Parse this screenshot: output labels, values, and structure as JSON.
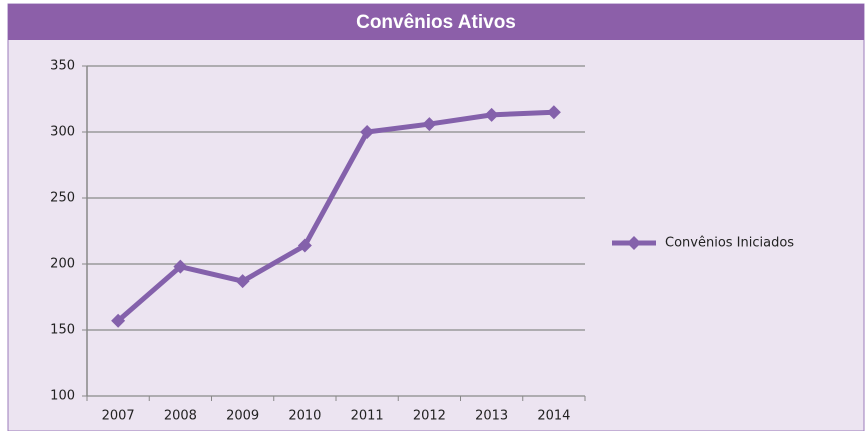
{
  "chart_data": {
    "type": "line",
    "title": "Convênios Ativos",
    "categories": [
      "2007",
      "2008",
      "2009",
      "2010",
      "2011",
      "2012",
      "2013",
      "2014"
    ],
    "series": [
      {
        "name": "Convênios Iniciados",
        "color": "#8461ab",
        "values": [
          157,
          198,
          187,
          214,
          300,
          306,
          313,
          315
        ]
      }
    ],
    "ylim": [
      100,
      350
    ],
    "yticks": [
      100,
      150,
      200,
      250,
      300,
      350
    ],
    "grid": true,
    "legend": "right"
  }
}
